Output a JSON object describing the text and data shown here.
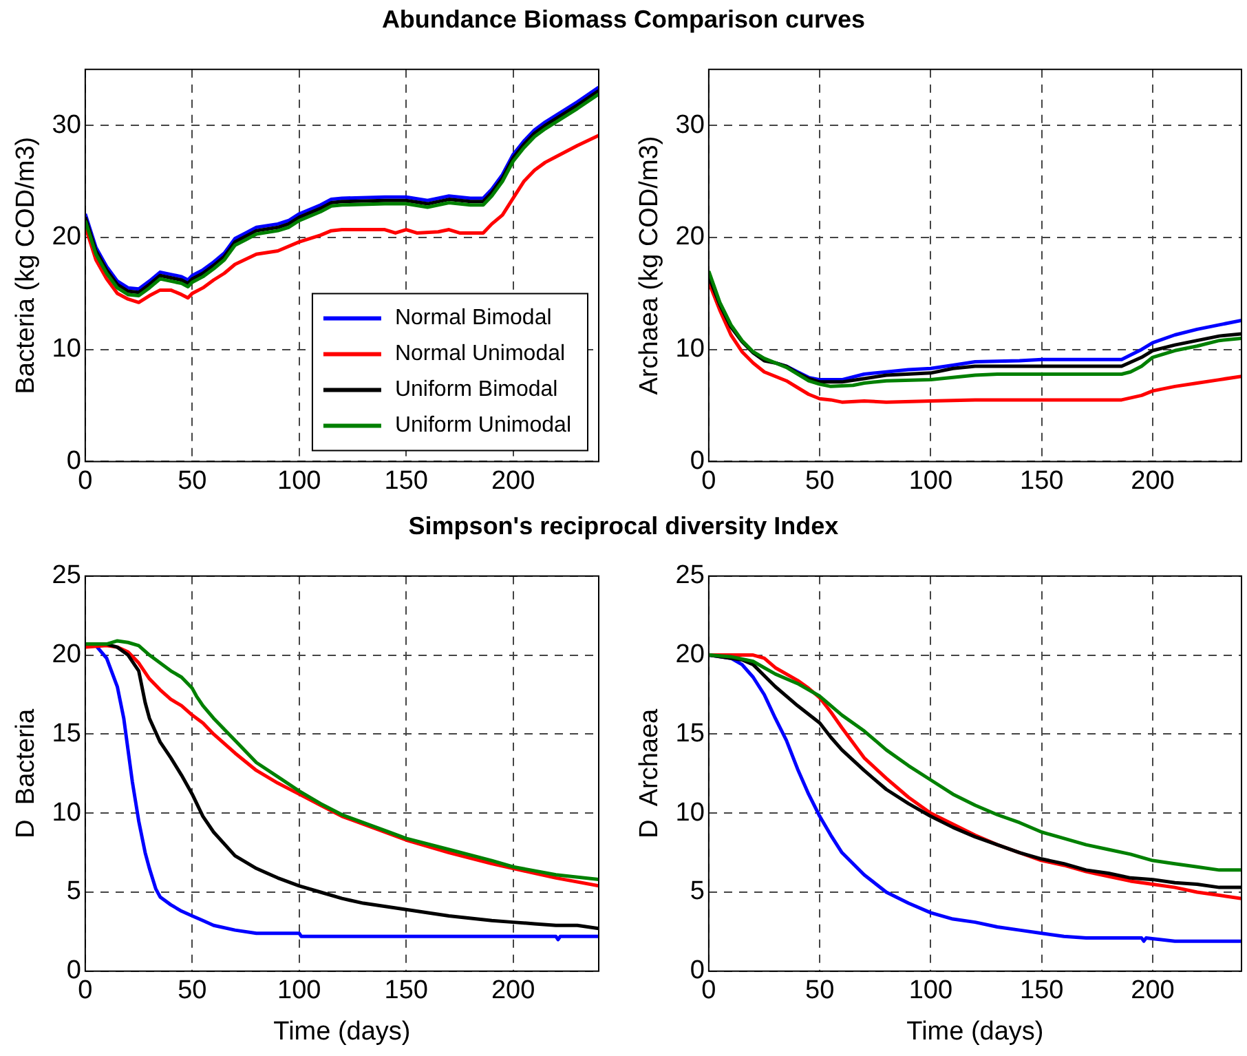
{
  "chart_data": [
    {
      "type": "line",
      "title": "Abundance Biomass Comparison curves",
      "ylabel": "Bacteria (kg COD/m3)",
      "xlim": [
        0,
        240
      ],
      "xticks": [
        0,
        50,
        100,
        150,
        200
      ],
      "ylim": [
        0,
        35
      ],
      "yticks": [
        0,
        10,
        20,
        30
      ],
      "grid": true,
      "legend": "bottom right",
      "series": [
        {
          "name": "Normal Bimodal",
          "color": "#0000ff",
          "x": [
            0,
            5,
            10,
            15,
            20,
            25,
            30,
            35,
            40,
            45,
            48,
            50,
            55,
            60,
            65,
            70,
            75,
            80,
            90,
            95,
            100,
            110,
            115,
            120,
            140,
            150,
            160,
            170,
            180,
            186,
            190,
            195,
            200,
            205,
            210,
            215,
            220,
            230,
            240
          ],
          "values": [
            22.1,
            19.1,
            17.4,
            16.1,
            15.5,
            15.4,
            16.1,
            16.9,
            16.7,
            16.5,
            16.2,
            16.6,
            17.1,
            17.8,
            18.6,
            19.9,
            20.4,
            20.9,
            21.2,
            21.5,
            22.1,
            22.9,
            23.4,
            23.5,
            23.6,
            23.6,
            23.3,
            23.7,
            23.5,
            23.5,
            24.3,
            25.6,
            27.4,
            28.6,
            29.6,
            30.3,
            30.9,
            32.1,
            33.4
          ]
        },
        {
          "name": "Normal Unimodal",
          "color": "#ff0000",
          "x": [
            0,
            5,
            10,
            15,
            20,
            25,
            30,
            35,
            40,
            45,
            48,
            50,
            55,
            60,
            65,
            70,
            80,
            90,
            100,
            110,
            115,
            120,
            140,
            145,
            150,
            155,
            165,
            170,
            175,
            186,
            190,
            195,
            200,
            205,
            210,
            215,
            220,
            230,
            240
          ],
          "values": [
            21,
            18,
            16.3,
            15,
            14.5,
            14.2,
            14.8,
            15.3,
            15.3,
            14.9,
            14.6,
            15,
            15.5,
            16.2,
            16.8,
            17.6,
            18.5,
            18.8,
            19.6,
            20.2,
            20.6,
            20.7,
            20.7,
            20.4,
            20.7,
            20.4,
            20.5,
            20.7,
            20.4,
            20.4,
            21.2,
            22.0,
            23.5,
            25.0,
            26.0,
            26.7,
            27.2,
            28.2,
            29.1
          ]
        },
        {
          "name": "Uniform Bimodal",
          "color": "#000000",
          "x": [
            0,
            5,
            10,
            15,
            20,
            25,
            30,
            35,
            40,
            45,
            48,
            50,
            55,
            60,
            65,
            70,
            75,
            80,
            90,
            95,
            100,
            110,
            115,
            120,
            140,
            150,
            160,
            170,
            180,
            186,
            190,
            195,
            200,
            205,
            210,
            215,
            220,
            230,
            240
          ],
          "values": [
            21.8,
            18.8,
            17.1,
            15.8,
            15.2,
            15.1,
            15.8,
            16.6,
            16.4,
            16.2,
            15.9,
            16.3,
            16.8,
            17.5,
            18.3,
            19.6,
            20.1,
            20.6,
            20.9,
            21.2,
            21.8,
            22.6,
            23.1,
            23.2,
            23.3,
            23.3,
            23.0,
            23.4,
            23.2,
            23.2,
            24.0,
            25.3,
            27.1,
            28.3,
            29.3,
            30.0,
            30.6,
            31.8,
            33.1
          ]
        },
        {
          "name": "Uniform Unimodal",
          "color": "#008000",
          "x": [
            0,
            5,
            10,
            15,
            20,
            25,
            30,
            35,
            40,
            45,
            48,
            50,
            55,
            60,
            65,
            70,
            75,
            80,
            90,
            95,
            100,
            110,
            115,
            120,
            140,
            150,
            160,
            170,
            180,
            186,
            190,
            195,
            200,
            205,
            210,
            215,
            220,
            230,
            240
          ],
          "values": [
            21.5,
            18.5,
            16.8,
            15.5,
            14.9,
            14.8,
            15.5,
            16.3,
            16.1,
            15.9,
            15.6,
            16.0,
            16.5,
            17.2,
            18.0,
            19.3,
            19.8,
            20.3,
            20.6,
            20.9,
            21.5,
            22.3,
            22.8,
            22.9,
            23.0,
            23.0,
            22.7,
            23.1,
            22.9,
            22.9,
            23.7,
            25.0,
            26.8,
            28.0,
            29.0,
            29.7,
            30.3,
            31.5,
            32.8
          ]
        }
      ]
    },
    {
      "type": "line",
      "ylabel": "Archaea (kg COD/m3)",
      "xlim": [
        0,
        240
      ],
      "xticks": [
        0,
        50,
        100,
        150,
        200
      ],
      "ylim": [
        0,
        35
      ],
      "yticks": [
        0,
        10,
        20,
        30
      ],
      "grid": true,
      "series": [
        {
          "color": "#0000ff",
          "x": [
            30,
            35,
            40,
            45,
            50,
            60,
            70,
            80,
            90,
            100,
            110,
            120,
            140,
            150,
            186,
            190,
            195,
            200,
            210,
            220,
            230,
            240
          ],
          "values": [
            8.8,
            8.5,
            8.0,
            7.5,
            7.3,
            7.3,
            7.8,
            8.0,
            8.2,
            8.3,
            8.6,
            8.9,
            9.0,
            9.1,
            9.1,
            9.5,
            10.0,
            10.6,
            11.3,
            11.8,
            12.2,
            12.6
          ]
        },
        {
          "color": "#ff0000",
          "x": [
            0,
            5,
            10,
            15,
            20,
            25,
            30,
            35,
            40,
            45,
            50,
            55,
            60,
            70,
            80,
            100,
            120,
            186,
            195,
            200,
            210,
            220,
            230,
            240
          ],
          "values": [
            16,
            13.5,
            11.3,
            9.8,
            8.8,
            8.0,
            7.6,
            7.2,
            6.6,
            6.0,
            5.6,
            5.5,
            5.3,
            5.4,
            5.3,
            5.4,
            5.5,
            5.5,
            5.9,
            6.3,
            6.7,
            7.0,
            7.3,
            7.6
          ]
        },
        {
          "color": "#000000",
          "x": [
            0,
            5,
            10,
            15,
            20,
            25,
            30,
            35,
            40,
            45,
            50,
            60,
            70,
            80,
            100,
            110,
            120,
            186,
            195,
            200,
            210,
            220,
            230,
            240
          ],
          "values": [
            16.5,
            14,
            12,
            10.7,
            9.7,
            9.0,
            8.8,
            8.5,
            7.9,
            7.4,
            7.1,
            7.1,
            7.4,
            7.7,
            7.9,
            8.3,
            8.5,
            8.5,
            9.3,
            9.9,
            10.4,
            10.8,
            11.2,
            11.4
          ]
        },
        {
          "color": "#008000",
          "x": [
            0,
            5,
            10,
            15,
            20,
            25,
            30,
            35,
            40,
            45,
            50,
            55,
            65,
            70,
            80,
            100,
            110,
            120,
            130,
            186,
            190,
            195,
            200,
            210,
            220,
            230,
            240
          ],
          "values": [
            17,
            14.2,
            12.2,
            10.8,
            9.8,
            9.2,
            8.8,
            8.4,
            7.8,
            7.2,
            6.9,
            6.7,
            6.8,
            7.0,
            7.2,
            7.3,
            7.5,
            7.7,
            7.8,
            7.8,
            8.0,
            8.5,
            9.3,
            9.9,
            10.3,
            10.8,
            11.0
          ]
        }
      ]
    },
    {
      "type": "line",
      "title": "Simpson's reciprocal diversity Index",
      "xlabel": "Time (days)",
      "ylabel": "D  Bacteria",
      "xlim": [
        0,
        240
      ],
      "xticks": [
        0,
        50,
        100,
        150,
        200
      ],
      "ylim": [
        0,
        25
      ],
      "yticks": [
        0,
        5,
        10,
        15,
        20,
        25
      ],
      "grid": true,
      "series": [
        {
          "color": "#0000ff",
          "x": [
            5,
            10,
            15,
            18,
            20,
            22,
            25,
            28,
            30,
            33,
            35,
            40,
            45,
            50,
            55,
            60,
            70,
            80,
            100,
            101,
            220,
            221,
            222,
            240
          ],
          "values": [
            20.6,
            19.8,
            18,
            16,
            14,
            12,
            9.5,
            7.5,
            6.5,
            5.2,
            4.7,
            4.2,
            3.8,
            3.5,
            3.2,
            2.9,
            2.6,
            2.4,
            2.4,
            2.2,
            2.2,
            2.0,
            2.2,
            2.2
          ]
        },
        {
          "color": "#ff0000",
          "x": [
            0,
            10,
            15,
            20,
            25,
            30,
            35,
            40,
            45,
            50,
            55,
            60,
            70,
            80,
            90,
            100,
            110,
            120,
            140,
            150,
            170,
            190,
            200,
            220,
            240
          ],
          "values": [
            20.5,
            20.6,
            20.5,
            20.2,
            19.5,
            18.5,
            17.8,
            17.2,
            16.8,
            16.2,
            15.7,
            15.0,
            13.8,
            12.7,
            11.9,
            11.2,
            10.5,
            9.8,
            8.8,
            8.3,
            7.5,
            6.8,
            6.5,
            5.9,
            5.4
          ]
        },
        {
          "color": "#000000",
          "x": [
            0,
            10,
            15,
            20,
            25,
            28,
            30,
            35,
            40,
            45,
            50,
            55,
            60,
            70,
            80,
            90,
            100,
            110,
            120,
            130,
            150,
            170,
            190,
            200,
            210,
            220,
            230,
            240
          ],
          "values": [
            20.7,
            20.7,
            20.5,
            20,
            19,
            17,
            16,
            14.5,
            13.5,
            12.4,
            11.2,
            9.8,
            8.8,
            7.3,
            6.5,
            5.9,
            5.4,
            5.0,
            4.6,
            4.3,
            3.9,
            3.5,
            3.2,
            3.1,
            3.0,
            2.9,
            2.9,
            2.7
          ]
        },
        {
          "color": "#008000",
          "x": [
            0,
            10,
            15,
            20,
            25,
            30,
            35,
            40,
            45,
            50,
            52,
            55,
            60,
            70,
            80,
            90,
            100,
            110,
            120,
            140,
            150,
            170,
            190,
            200,
            220,
            240
          ],
          "values": [
            20.7,
            20.7,
            20.9,
            20.8,
            20.6,
            20.0,
            19.5,
            19.0,
            18.6,
            17.9,
            17.4,
            16.8,
            16.0,
            14.6,
            13.2,
            12.3,
            11.4,
            10.6,
            9.9,
            8.9,
            8.4,
            7.7,
            7.0,
            6.6,
            6.1,
            5.8
          ]
        }
      ]
    },
    {
      "type": "line",
      "xlabel": "Time (days)",
      "ylabel": "D  Archaea",
      "xlim": [
        0,
        240
      ],
      "xticks": [
        0,
        50,
        100,
        150,
        200
      ],
      "ylim": [
        0,
        25
      ],
      "yticks": [
        0,
        5,
        10,
        15,
        20,
        25
      ],
      "grid": true,
      "series": [
        {
          "color": "#0000ff",
          "x": [
            0,
            5,
            10,
            15,
            20,
            25,
            30,
            35,
            40,
            45,
            50,
            55,
            60,
            70,
            80,
            90,
            100,
            110,
            120,
            130,
            140,
            150,
            160,
            170,
            195,
            196,
            197,
            210,
            240
          ],
          "values": [
            20,
            19.9,
            19.8,
            19.4,
            18.6,
            17.5,
            16,
            14.6,
            12.8,
            11.2,
            9.8,
            8.6,
            7.5,
            6.1,
            5.0,
            4.3,
            3.7,
            3.3,
            3.1,
            2.8,
            2.6,
            2.4,
            2.2,
            2.1,
            2.1,
            1.9,
            2.1,
            1.9,
            1.9
          ]
        },
        {
          "color": "#ff0000",
          "x": [
            0,
            10,
            20,
            25,
            30,
            40,
            45,
            50,
            55,
            60,
            70,
            80,
            90,
            100,
            110,
            120,
            130,
            140,
            150,
            160,
            170,
            180,
            190,
            200,
            210,
            220,
            230,
            240
          ],
          "values": [
            20,
            20,
            20,
            19.8,
            19.2,
            18.4,
            17.9,
            17.3,
            16.4,
            15.4,
            13.5,
            12.2,
            11,
            10.0,
            9.3,
            8.6,
            8,
            7.5,
            7,
            6.7,
            6.3,
            6,
            5.7,
            5.5,
            5.3,
            5.0,
            4.8,
            4.6
          ]
        },
        {
          "color": "#000000",
          "x": [
            0,
            10,
            15,
            20,
            25,
            30,
            40,
            50,
            55,
            60,
            70,
            80,
            90,
            100,
            110,
            120,
            130,
            140,
            150,
            160,
            170,
            180,
            190,
            200,
            210,
            220,
            230,
            240
          ],
          "values": [
            20,
            19.8,
            19.7,
            19.4,
            18.7,
            18,
            16.8,
            15.7,
            14.8,
            14,
            12.7,
            11.5,
            10.6,
            9.8,
            9.1,
            8.5,
            8,
            7.5,
            7.1,
            6.8,
            6.4,
            6.2,
            5.9,
            5.8,
            5.6,
            5.5,
            5.3,
            5.3
          ]
        },
        {
          "color": "#008000",
          "x": [
            0,
            10,
            20,
            25,
            30,
            40,
            50,
            55,
            60,
            70,
            80,
            90,
            100,
            110,
            120,
            130,
            140,
            150,
            160,
            170,
            180,
            190,
            200,
            210,
            220,
            230,
            240
          ],
          "values": [
            20,
            19.9,
            19.6,
            19.2,
            18.8,
            18.2,
            17.4,
            16.8,
            16.2,
            15.2,
            14,
            13,
            12.1,
            11.2,
            10.5,
            9.9,
            9.4,
            8.8,
            8.4,
            8.0,
            7.7,
            7.4,
            7.0,
            6.8,
            6.6,
            6.4,
            6.4
          ]
        }
      ]
    }
  ]
}
